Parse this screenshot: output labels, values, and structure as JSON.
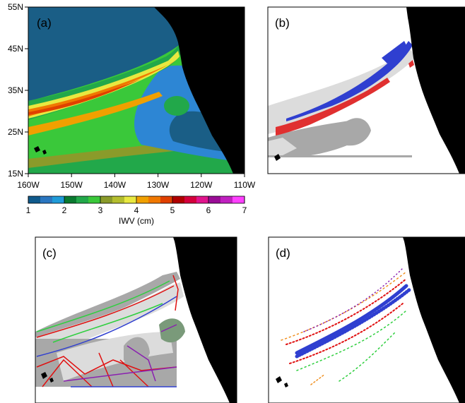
{
  "chart_data": [
    {
      "type": "heatmap",
      "panel_label": "(a)",
      "xtick_labels": [
        "160W",
        "150W",
        "140W",
        "130W",
        "120W",
        "110W"
      ],
      "xticks": [
        -160,
        -150,
        -140,
        -130,
        -120,
        -110
      ],
      "xlim": [
        -160,
        -110
      ],
      "ytick_labels": [
        "15N",
        "25N",
        "35N",
        "45N",
        "55N"
      ],
      "yticks": [
        15,
        25,
        35,
        45,
        55
      ],
      "ylim": [
        15,
        55
      ],
      "colorbar": {
        "label": "IWV (cm)",
        "tick_labels": [
          "1",
          "2",
          "3",
          "4",
          "5",
          "6",
          "7"
        ],
        "range": [
          1,
          7
        ],
        "colors": [
          "#0f5a8c",
          "#2a76c0",
          "#1f9bd8",
          "#0a7a30",
          "#22a84a",
          "#3ac83a",
          "#8a9b2a",
          "#b4be2e",
          "#e8e840",
          "#f0a000",
          "#f07800",
          "#e04000",
          "#b00000",
          "#d4003c",
          "#e0148c",
          "#9a0c96",
          "#c020c0",
          "#ff40ff"
        ]
      }
    },
    {
      "type": "heatmap",
      "panel_label": "(b)"
    },
    {
      "type": "heatmap",
      "panel_label": "(c)"
    },
    {
      "type": "heatmap",
      "panel_label": "(d)"
    }
  ],
  "colors": {
    "land": "#000000",
    "ocean_dry": "#1a5e86",
    "ocean_moist": "#2d86d4",
    "mask_light": "#dcdcdc",
    "mask_dark": "#a8a8a8",
    "object_blue": "#2f3fd0",
    "object_red": "#e03030",
    "skeleton_red": "#e01010",
    "skeleton_green": "#2fcf3f",
    "skeleton_purple": "#8a20b0",
    "skeleton_orange": "#f09020"
  }
}
